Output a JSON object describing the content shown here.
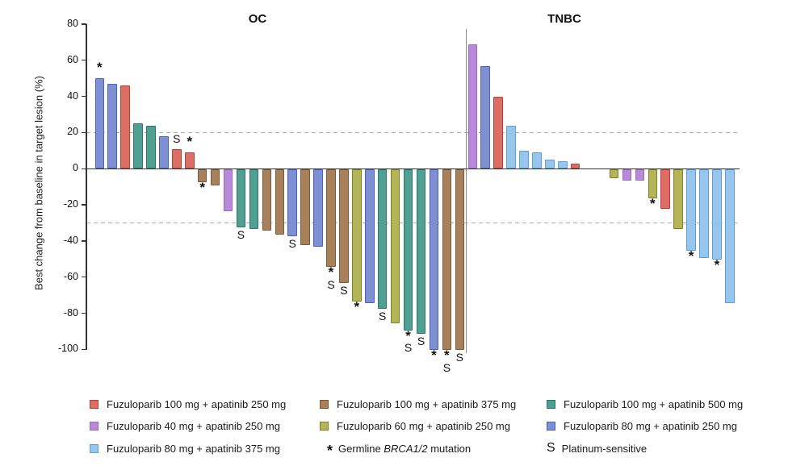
{
  "chart_data": {
    "type": "bar",
    "ylabel": "Best change from baseline in target lesion (%)",
    "ylim": [
      -100,
      80
    ],
    "yticks": [
      80,
      60,
      40,
      20,
      0,
      -20,
      -40,
      -60,
      -80,
      -100
    ],
    "reference_lines": [
      20,
      -30
    ],
    "grid": false,
    "legend_position": "bottom",
    "marker_meanings": {
      "*": "Germline BRCA1/2 mutation",
      "S": "Platinum-sensitive"
    },
    "panels": [
      {
        "title": "OC",
        "bars": [
          {
            "value": 50,
            "group": "blue",
            "marks": "*"
          },
          {
            "value": 47,
            "group": "blue",
            "marks": ""
          },
          {
            "value": 46,
            "group": "red",
            "marks": ""
          },
          {
            "value": 25,
            "group": "teal",
            "marks": ""
          },
          {
            "value": 24,
            "group": "teal",
            "marks": ""
          },
          {
            "value": 18,
            "group": "blue",
            "marks": ""
          },
          {
            "value": 11,
            "group": "red",
            "marks": "S"
          },
          {
            "value": 9,
            "group": "red",
            "marks": "*"
          },
          {
            "value": -7,
            "group": "brown",
            "marks": "*"
          },
          {
            "value": -9,
            "group": "brown",
            "marks": ""
          },
          {
            "value": -23,
            "group": "purple",
            "marks": ""
          },
          {
            "value": -32,
            "group": "teal",
            "marks": "S"
          },
          {
            "value": -33,
            "group": "teal",
            "marks": ""
          },
          {
            "value": -34,
            "group": "brown",
            "marks": ""
          },
          {
            "value": -36,
            "group": "brown",
            "marks": ""
          },
          {
            "value": -37,
            "group": "blue",
            "marks": "S"
          },
          {
            "value": -42,
            "group": "brown",
            "marks": ""
          },
          {
            "value": -43,
            "group": "blue",
            "marks": ""
          },
          {
            "value": -54,
            "group": "brown",
            "marks": "*S"
          },
          {
            "value": -63,
            "group": "brown",
            "marks": "S"
          },
          {
            "value": -73,
            "group": "olive",
            "marks": "*"
          },
          {
            "value": -74,
            "group": "blue",
            "marks": ""
          },
          {
            "value": -77,
            "group": "teal",
            "marks": "S"
          },
          {
            "value": -85,
            "group": "olive",
            "marks": ""
          },
          {
            "value": -89,
            "group": "teal",
            "marks": "*S"
          },
          {
            "value": -91,
            "group": "teal",
            "marks": "S"
          },
          {
            "value": -100,
            "group": "blue",
            "marks": "*"
          },
          {
            "value": -100,
            "group": "brown",
            "marks": "*S"
          },
          {
            "value": -100,
            "group": "brown",
            "marks": "S"
          }
        ]
      },
      {
        "title": "TNBC",
        "bars": [
          {
            "value": 69,
            "group": "purple",
            "marks": ""
          },
          {
            "value": 57,
            "group": "blue",
            "marks": ""
          },
          {
            "value": 40,
            "group": "red",
            "marks": ""
          },
          {
            "value": 24,
            "group": "lightblue",
            "marks": ""
          },
          {
            "value": 10,
            "group": "lightblue",
            "marks": ""
          },
          {
            "value": 9,
            "group": "lightblue",
            "marks": ""
          },
          {
            "value": 5,
            "group": "lightblue",
            "marks": ""
          },
          {
            "value": 4,
            "group": "lightblue",
            "marks": ""
          },
          {
            "value": 3,
            "group": "red",
            "marks": ""
          },
          {
            "value": 0,
            "group": null,
            "marks": ""
          },
          {
            "value": 0,
            "group": null,
            "marks": ""
          },
          {
            "value": -5,
            "group": "olive",
            "marks": ""
          },
          {
            "value": -6,
            "group": "purple",
            "marks": ""
          },
          {
            "value": -6,
            "group": "purple",
            "marks": ""
          },
          {
            "value": -16,
            "group": "olive",
            "marks": "*"
          },
          {
            "value": -22,
            "group": "red",
            "marks": ""
          },
          {
            "value": -33,
            "group": "olive",
            "marks": ""
          },
          {
            "value": -45,
            "group": "lightblue",
            "marks": "*"
          },
          {
            "value": -49,
            "group": "lightblue",
            "marks": ""
          },
          {
            "value": -50,
            "group": "lightblue",
            "marks": "*"
          },
          {
            "value": -74,
            "group": "lightblue",
            "marks": ""
          }
        ]
      }
    ]
  },
  "colors": {
    "red": {
      "fill": "#DC6E66",
      "stroke": "#C13D31"
    },
    "brown": {
      "fill": "#A8815C",
      "stroke": "#7B5A35"
    },
    "teal": {
      "fill": "#4FA092",
      "stroke": "#2F7568"
    },
    "purple": {
      "fill": "#B88BD8",
      "stroke": "#A564CC"
    },
    "olive": {
      "fill": "#B4B458",
      "stroke": "#7F8023"
    },
    "blue": {
      "fill": "#7E90D2",
      "stroke": "#4C60C4"
    },
    "lightblue": {
      "fill": "#97C6EC",
      "stroke": "#5C9EDC"
    },
    "axis": "#333333",
    "reference_line": "#ADADAD",
    "separator": "#8C8C8C",
    "marker": "#111111"
  },
  "legend": {
    "items": [
      {
        "color": "red",
        "label": "Fuzuloparib 100 mg + apatinib 250 mg"
      },
      {
        "color": "brown",
        "label": "Fuzuloparib 100 mg + apatinib 375 mg"
      },
      {
        "color": "teal",
        "label": "Fuzuloparib 100 mg + apatinib 500 mg"
      },
      {
        "color": "purple",
        "label": "Fuzuloparib 40 mg + apatinib 250 mg"
      },
      {
        "color": "olive",
        "label": "Fuzuloparib 60 mg + apatinib 250 mg"
      },
      {
        "color": "blue",
        "label": "Fuzuloparib 80 mg + apatinib 250 mg"
      },
      {
        "color": "lightblue",
        "label": "Fuzuloparib 80 mg + apatinib 375 mg"
      }
    ],
    "brca": {
      "symbol": "*",
      "label_prefix": "Germline ",
      "gene": "BRCA1/2",
      "label_suffix": " mutation"
    },
    "platinum": {
      "symbol": "S",
      "label": "Platinum-sensitive"
    }
  }
}
